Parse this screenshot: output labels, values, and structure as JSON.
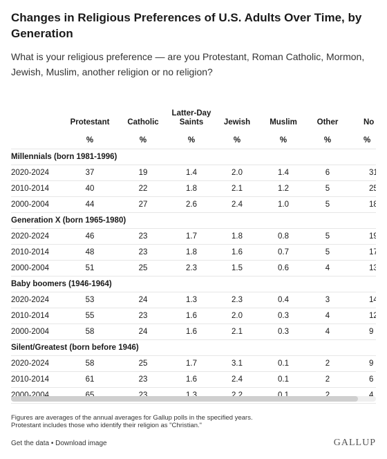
{
  "title": "Changes in Religious Preferences of U.S. Adults Over Time, by Generation",
  "subtitle": "What is your religious preference — are you Protestant, Roman Catholic, Mormon, Jewish, Muslim, another religion or no religion?",
  "chart_data": {
    "type": "table",
    "columns": [
      {
        "label": "Protestant",
        "unit": "%"
      },
      {
        "label": "Catholic",
        "unit": "%"
      },
      {
        "label": "Latter-Day Saints",
        "unit": "%"
      },
      {
        "label": "Jewish",
        "unit": "%"
      },
      {
        "label": "Muslim",
        "unit": "%"
      },
      {
        "label": "Other",
        "unit": "%"
      },
      {
        "label": "No religion",
        "unit": "%"
      }
    ],
    "groups": [
      {
        "name": "Millennials (born 1981-1996)",
        "rows": [
          {
            "period": "2020-2024",
            "values": [
              "37",
              "19",
              "1.4",
              "2.0",
              "1.4",
              "6",
              "31"
            ]
          },
          {
            "period": "2010-2014",
            "values": [
              "40",
              "22",
              "1.8",
              "2.1",
              "1.2",
              "5",
              "25"
            ]
          },
          {
            "period": "2000-2004",
            "values": [
              "44",
              "27",
              "2.6",
              "2.4",
              "1.0",
              "5",
              "18"
            ]
          }
        ]
      },
      {
        "name": "Generation X (born 1965-1980)",
        "rows": [
          {
            "period": "2020-2024",
            "values": [
              "46",
              "23",
              "1.7",
              "1.8",
              "0.8",
              "5",
              "19"
            ]
          },
          {
            "period": "2010-2014",
            "values": [
              "48",
              "23",
              "1.8",
              "1.6",
              "0.7",
              "5",
              "17"
            ]
          },
          {
            "period": "2000-2004",
            "values": [
              "51",
              "25",
              "2.3",
              "1.5",
              "0.6",
              "4",
              "13"
            ]
          }
        ]
      },
      {
        "name": "Baby boomers (1946-1964)",
        "rows": [
          {
            "period": "2020-2024",
            "values": [
              "53",
              "24",
              "1.3",
              "2.3",
              "0.4",
              "3",
              "14"
            ]
          },
          {
            "period": "2010-2014",
            "values": [
              "55",
              "23",
              "1.6",
              "2.0",
              "0.3",
              "4",
              "12"
            ]
          },
          {
            "period": "2000-2004",
            "values": [
              "58",
              "24",
              "1.6",
              "2.1",
              "0.3",
              "4",
              "9"
            ]
          }
        ]
      },
      {
        "name": "Silent/Greatest (born before 1946)",
        "rows": [
          {
            "period": "2020-2024",
            "values": [
              "58",
              "25",
              "1.7",
              "3.1",
              "0.1",
              "2",
              "9"
            ]
          },
          {
            "period": "2010-2014",
            "values": [
              "61",
              "23",
              "1.6",
              "2.4",
              "0.1",
              "2",
              "6"
            ]
          },
          {
            "period": "2000-2004",
            "values": [
              "65",
              "23",
              "1.3",
              "2.2",
              "0.1",
              "2",
              "4"
            ]
          }
        ]
      }
    ]
  },
  "footnote": [
    "Figures are averages of the annual averages for Gallup polls in the specified years.",
    "Protestant includes those who identify their religion as \"Christian.\""
  ],
  "links": {
    "get_data": "Get the data",
    "separator": "•",
    "download": "Download image"
  },
  "brand": "GALLUP",
  "scroll_position": 0.95
}
